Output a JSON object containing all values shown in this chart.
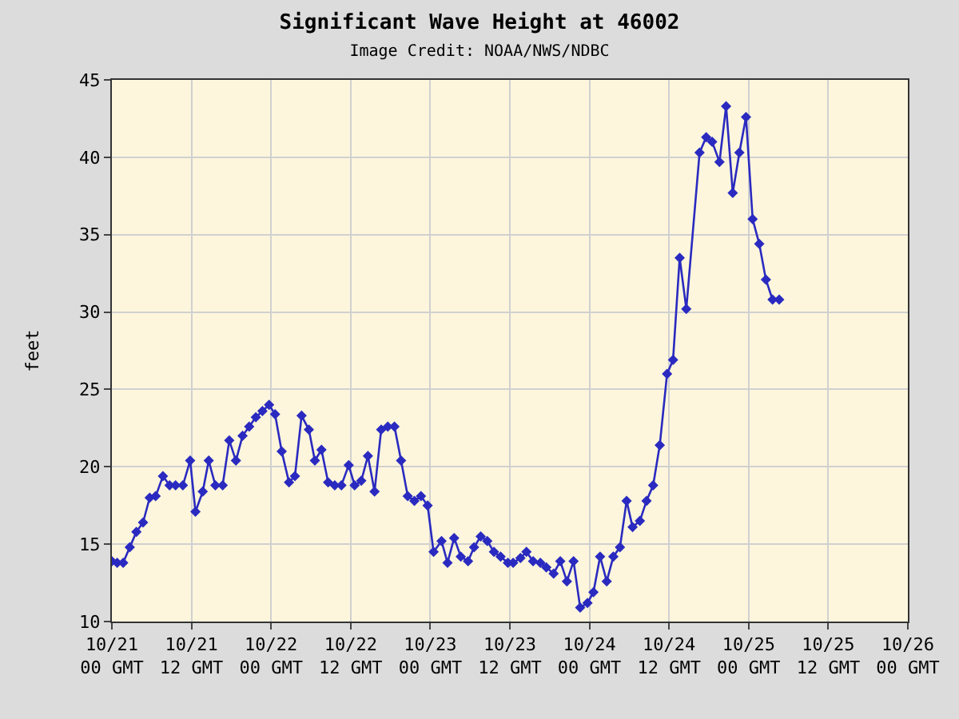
{
  "chart_data": {
    "type": "line",
    "title": "Significant Wave Height at 46002",
    "subtitle": "Image Credit: NOAA/NWS/NDBC",
    "ylabel": "feet",
    "x": [
      "--10-21T00:00",
      "--10-21T00:48",
      "--10-21T01:42",
      "--10-21T02:42",
      "--10-21T03:42",
      "--10-21T04:42",
      "--10-21T05:42",
      "--10-21T06:36",
      "--10-21T07:42",
      "--10-21T08:42",
      "--10-21T09:36",
      "--10-21T10:42",
      "--10-21T11:48",
      "--10-21T12:36",
      "--10-21T13:42",
      "--10-21T14:36",
      "--10-21T15:36",
      "--10-21T16:42",
      "--10-21T17:42",
      "--10-21T18:42",
      "--10-21T19:42",
      "--10-21T20:42",
      "--10-21T21:42",
      "--10-21T22:42",
      "--10-21T23:42",
      "--10-22T00:36",
      "--10-22T01:36",
      "--10-22T02:42",
      "--10-22T03:36",
      "--10-22T04:36",
      "--10-22T05:42",
      "--10-22T06:36",
      "--10-22T07:36",
      "--10-22T08:36",
      "--10-22T09:36",
      "--10-22T10:36",
      "--10-22T11:42",
      "--10-22T12:36",
      "--10-22T13:36",
      "--10-22T14:36",
      "--10-22T15:36",
      "--10-22T16:36",
      "--10-22T17:36",
      "--10-22T18:36",
      "--10-22T19:36",
      "--10-22T20:36",
      "--10-22T21:36",
      "--10-22T22:36",
      "--10-22T23:36",
      "--10-23T00:30",
      "--10-23T01:42",
      "--10-23T02:36",
      "--10-23T03:36",
      "--10-23T04:36",
      "--10-23T05:42",
      "--10-23T06:36",
      "--10-23T07:36",
      "--10-23T08:36",
      "--10-23T09:36",
      "--10-23T10:36",
      "--10-23T11:42",
      "--10-23T12:30",
      "--10-23T13:36",
      "--10-23T14:30",
      "--10-23T15:30",
      "--10-23T16:36",
      "--10-23T17:30",
      "--10-23T18:36",
      "--10-23T19:36",
      "--10-23T20:36",
      "--10-23T21:36",
      "--10-23T22:36",
      "--10-23T23:42",
      "--10-24T00:36",
      "--10-24T01:36",
      "--10-24T02:36",
      "--10-24T03:36",
      "--10-24T04:36",
      "--10-24T05:36",
      "--10-24T06:30",
      "--10-24T07:36",
      "--10-24T08:36",
      "--10-24T09:36",
      "--10-24T10:36",
      "--10-24T11:42",
      "--10-24T12:36",
      "--10-24T13:36",
      "--10-24T14:36",
      "--10-24T16:36",
      "--10-24T17:36",
      "--10-24T18:30",
      "--10-24T19:36",
      "--10-24T20:36",
      "--10-24T21:36",
      "--10-24T22:36",
      "--10-24T23:36",
      "--10-25T00:36",
      "--10-25T01:36",
      "--10-25T02:36",
      "--10-25T03:36",
      "--10-25T04:36"
    ],
    "series": [
      {
        "color": "#2a2ac0",
        "values": [
          13.9,
          13.8,
          13.8,
          14.8,
          15.8,
          16.4,
          18.0,
          18.1,
          19.4,
          18.8,
          18.8,
          18.8,
          20.4,
          17.1,
          18.4,
          20.4,
          18.8,
          18.8,
          21.7,
          20.4,
          22.0,
          22.6,
          23.2,
          23.6,
          24.0,
          23.4,
          21.0,
          19.0,
          19.4,
          23.3,
          22.4,
          20.4,
          21.1,
          19.0,
          18.8,
          18.8,
          20.1,
          18.8,
          19.1,
          20.7,
          18.4,
          22.4,
          22.6,
          22.6,
          20.4,
          18.1,
          17.8,
          18.1,
          17.5,
          14.5,
          15.2,
          13.8,
          15.4,
          14.2,
          13.9,
          14.8,
          15.5,
          15.2,
          14.5,
          14.2,
          13.8,
          13.8,
          14.1,
          14.5,
          13.9,
          13.8,
          13.5,
          13.1,
          13.9,
          12.6,
          13.9,
          10.9,
          11.2,
          11.9,
          14.2,
          12.6,
          14.2,
          14.8,
          17.8,
          16.1,
          16.5,
          17.8,
          18.8,
          21.4,
          26.0,
          26.9,
          33.5,
          30.2,
          40.3,
          41.3,
          41.0,
          39.7,
          43.3,
          37.7,
          40.3,
          42.6,
          36.0,
          34.4,
          32.1,
          30.8,
          30.8
        ]
      }
    ],
    "xlim": [
      "--10-21T00:00",
      "--10-26T00:00"
    ],
    "xticks": [
      {
        "value": "--10-21T00:00",
        "label": "10/21\n00 GMT"
      },
      {
        "value": "--10-21T12:00",
        "label": "10/21\n12 GMT"
      },
      {
        "value": "--10-22T00:00",
        "label": "10/22\n00 GMT"
      },
      {
        "value": "--10-22T12:00",
        "label": "10/22\n12 GMT"
      },
      {
        "value": "--10-23T00:00",
        "label": "10/23\n00 GMT"
      },
      {
        "value": "--10-23T12:00",
        "label": "10/23\n12 GMT"
      },
      {
        "value": "--10-24T00:00",
        "label": "10/24\n00 GMT"
      },
      {
        "value": "--10-24T12:00",
        "label": "10/24\n12 GMT"
      },
      {
        "value": "--10-25T00:00",
        "label": "10/25\n00 GMT"
      },
      {
        "value": "--10-25T12:00",
        "label": "10/25\n12 GMT"
      },
      {
        "value": "--10-26T00:00",
        "label": "10/26\n00 GMT"
      }
    ],
    "ylim": [
      10,
      45
    ],
    "yticks": [
      10,
      15,
      20,
      25,
      30,
      35,
      40,
      45
    ],
    "grid": true,
    "marker": "diamond",
    "line_style": "solid"
  }
}
